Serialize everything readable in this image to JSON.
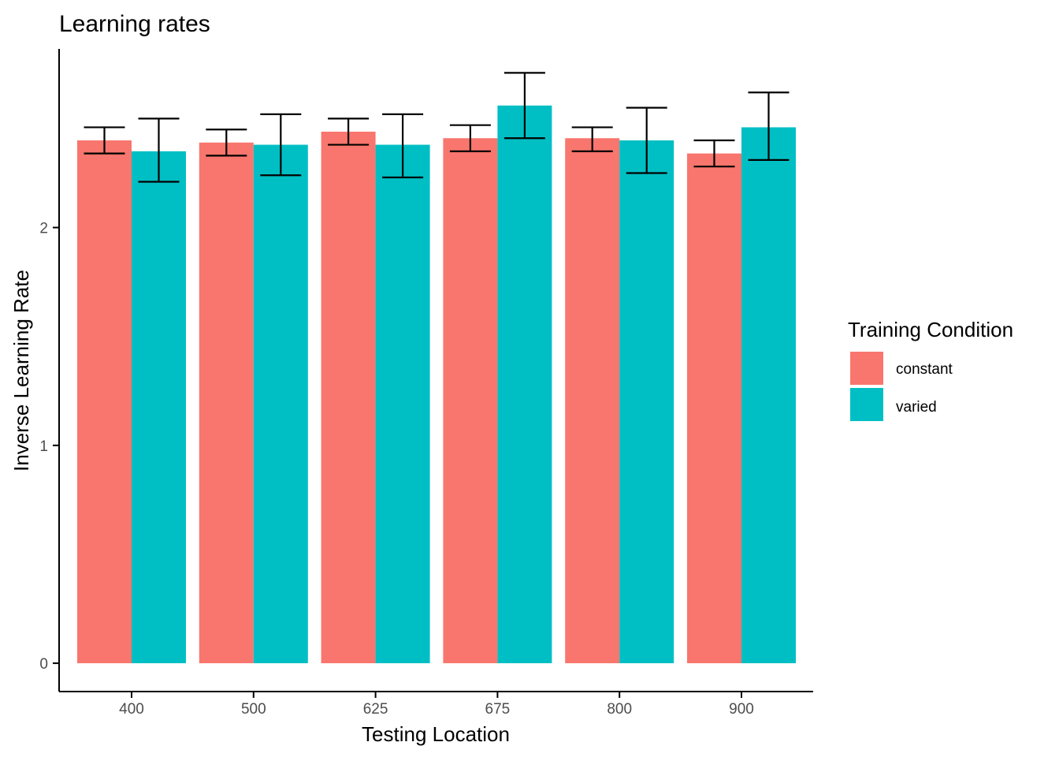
{
  "chart_data": {
    "type": "bar",
    "title": "Learning rates",
    "xlabel": "Testing Location",
    "ylabel": "Inverse Learning Rate",
    "categories": [
      "400",
      "500",
      "625",
      "675",
      "800",
      "900"
    ],
    "yticks": [
      "0",
      "1",
      "2"
    ],
    "ylim": [
      -0.13,
      2.82
    ],
    "grid": false,
    "legend": {
      "title": "Training Condition",
      "position": "right"
    },
    "series": [
      {
        "name": "constant",
        "color": "#F8766D",
        "values": [
          2.4,
          2.39,
          2.44,
          2.41,
          2.41,
          2.34
        ],
        "error_low": [
          2.34,
          2.33,
          2.38,
          2.35,
          2.35,
          2.28
        ],
        "error_high": [
          2.46,
          2.45,
          2.5,
          2.47,
          2.46,
          2.4
        ]
      },
      {
        "name": "varied",
        "color": "#00BFC4",
        "values": [
          2.35,
          2.38,
          2.38,
          2.56,
          2.4,
          2.46
        ],
        "error_low": [
          2.21,
          2.24,
          2.23,
          2.41,
          2.25,
          2.31
        ],
        "error_high": [
          2.5,
          2.52,
          2.52,
          2.71,
          2.55,
          2.62
        ]
      }
    ]
  }
}
